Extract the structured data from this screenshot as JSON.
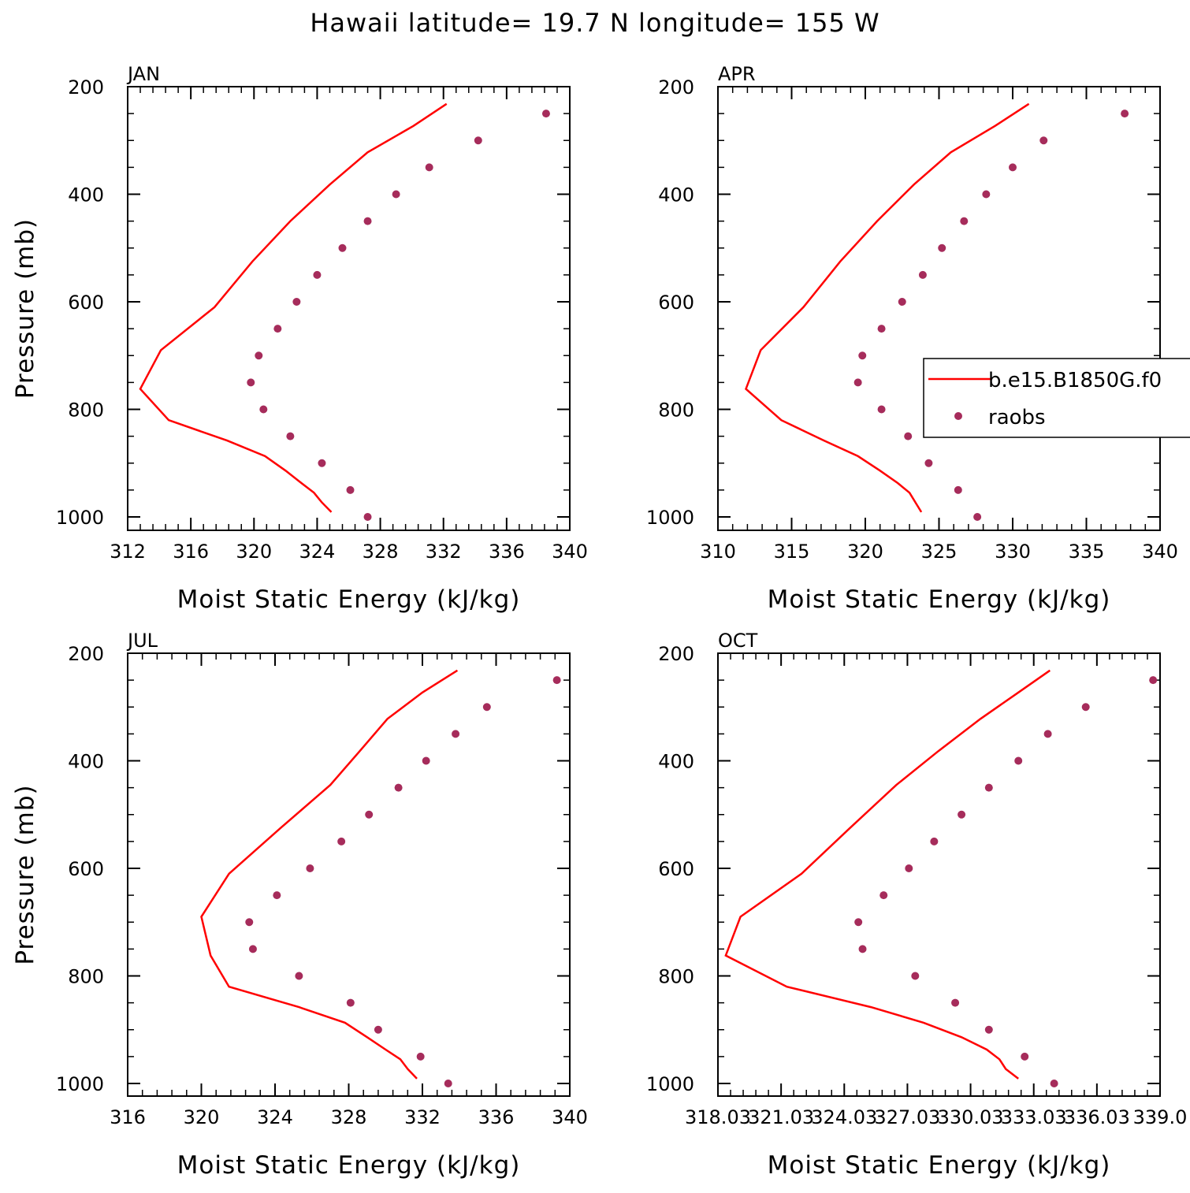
{
  "title": "Hawaii  latitude= 19.7 N longitude= 155 W",
  "legend": {
    "placement": "right-middle",
    "entries": [
      "b.e15.B1850G.f0",
      "raobs"
    ]
  },
  "colors": {
    "model_line": "#ff0000",
    "raobs_marker": "#a62c5b"
  },
  "chart_data": [
    {
      "type": "line",
      "panel_label": "JAN",
      "xlabel": "Moist Static Energy (kJ/kg)",
      "ylabel": "Pressure (mb)",
      "xlim": [
        312,
        340
      ],
      "ylim": [
        200,
        1020
      ],
      "x_ticks": [
        312,
        316,
        320,
        324,
        328,
        332,
        336,
        340
      ],
      "x_tick_labels": [
        "312",
        "316",
        "320",
        "324",
        "328",
        "332",
        "336",
        "340"
      ],
      "y_ticks": [
        200,
        400,
        600,
        800,
        1000
      ],
      "y_tick_labels": [
        "200",
        "400",
        "600",
        "800",
        "1000"
      ],
      "series": [
        {
          "name": "b.e15.B1850G.f0",
          "kind": "line",
          "x": [
            332.2,
            330.1,
            327.2,
            324.8,
            322.3,
            319.9,
            317.5,
            314.1,
            312.8,
            314.6,
            318.3,
            320.7,
            322.0,
            323.0,
            323.8,
            324.3,
            324.9
          ],
          "y": [
            232,
            273,
            322,
            382,
            450,
            525,
            610,
            690,
            762,
            820,
            858,
            887,
            914,
            937,
            955,
            973,
            991
          ]
        },
        {
          "name": "raobs",
          "kind": "scatter",
          "x": [
            338.5,
            334.2,
            331.1,
            329.0,
            327.2,
            325.6,
            324.0,
            322.7,
            321.5,
            320.3,
            319.8,
            320.6,
            322.3,
            324.3,
            326.1,
            327.2
          ],
          "y": [
            250,
            300,
            350,
            400,
            450,
            500,
            550,
            600,
            650,
            700,
            750,
            800,
            850,
            900,
            950,
            1000
          ]
        }
      ]
    },
    {
      "type": "line",
      "panel_label": "APR",
      "xlabel": "Moist Static Energy (kJ/kg)",
      "ylabel": "",
      "xlim": [
        310,
        340
      ],
      "ylim": [
        200,
        1020
      ],
      "x_ticks": [
        310,
        315,
        320,
        325,
        330,
        335,
        340
      ],
      "x_tick_labels": [
        "310",
        "315",
        "320",
        "325",
        "330",
        "335",
        "340"
      ],
      "y_ticks": [
        200,
        400,
        600,
        800,
        1000
      ],
      "y_tick_labels": [
        "200",
        "400",
        "600",
        "800",
        "1000"
      ],
      "series": [
        {
          "name": "b.e15.B1850G.f0",
          "kind": "line",
          "x": [
            331.1,
            328.8,
            325.8,
            323.3,
            320.8,
            318.3,
            315.8,
            312.9,
            311.9,
            314.3,
            317.2,
            319.5,
            321.0,
            322.2,
            323.0,
            323.4,
            323.8
          ],
          "y": [
            232,
            273,
            322,
            382,
            450,
            525,
            610,
            690,
            762,
            820,
            858,
            887,
            914,
            937,
            955,
            973,
            991
          ]
        },
        {
          "name": "raobs",
          "kind": "scatter",
          "x": [
            337.6,
            332.1,
            330.0,
            328.2,
            326.7,
            325.2,
            323.9,
            322.5,
            321.1,
            319.8,
            319.5,
            321.1,
            322.9,
            324.3,
            326.3,
            327.6
          ],
          "y": [
            250,
            300,
            350,
            400,
            450,
            500,
            550,
            600,
            650,
            700,
            750,
            800,
            850,
            900,
            950,
            1000
          ]
        }
      ]
    },
    {
      "type": "line",
      "panel_label": "JUL",
      "xlabel": "Moist Static Energy (kJ/kg)",
      "ylabel": "Pressure (mb)",
      "xlim": [
        316,
        340
      ],
      "ylim": [
        200,
        1020
      ],
      "x_ticks": [
        316,
        320,
        324,
        328,
        332,
        336,
        340
      ],
      "x_tick_labels": [
        "316",
        "320",
        "324",
        "328",
        "332",
        "336",
        "340"
      ],
      "y_ticks": [
        200,
        400,
        600,
        800,
        1000
      ],
      "y_tick_labels": [
        "200",
        "400",
        "600",
        "800",
        "1000"
      ],
      "series": [
        {
          "name": "b.e15.B1850G.f0",
          "kind": "line",
          "x": [
            333.9,
            332.0,
            330.1,
            328.6,
            327.0,
            324.3,
            321.5,
            320.0,
            320.5,
            321.5,
            325.3,
            327.8,
            329.0,
            330.0,
            330.8,
            331.2,
            331.7
          ],
          "y": [
            232,
            273,
            322,
            382,
            445,
            525,
            610,
            690,
            762,
            820,
            858,
            887,
            914,
            937,
            955,
            973,
            991
          ]
        },
        {
          "name": "raobs",
          "kind": "scatter",
          "x": [
            339.3,
            335.5,
            333.8,
            332.2,
            330.7,
            329.1,
            327.6,
            325.9,
            324.1,
            322.6,
            322.8,
            325.3,
            328.1,
            329.6,
            331.9,
            333.4
          ],
          "y": [
            250,
            300,
            350,
            400,
            450,
            500,
            550,
            600,
            650,
            700,
            750,
            800,
            850,
            900,
            950,
            1000
          ]
        }
      ]
    },
    {
      "type": "line",
      "panel_label": "OCT",
      "xlabel": "Moist Static Energy (kJ/kg)",
      "ylabel": "",
      "xlim": [
        318.03,
        339.03
      ],
      "ylim": [
        200,
        1020
      ],
      "x_ticks": [
        318.03,
        321.03,
        324.03,
        327.03,
        330.03,
        333.03,
        336.03,
        339.03
      ],
      "x_tick_labels": [
        "318.03",
        "321.03",
        "324.03",
        "327.03",
        "330.03",
        "333.03",
        "336.03",
        "339.0"
      ],
      "y_ticks": [
        200,
        400,
        600,
        800,
        1000
      ],
      "y_tick_labels": [
        "200",
        "400",
        "600",
        "800",
        "1000"
      ],
      "series": [
        {
          "name": "b.e15.B1850G.f0",
          "kind": "line",
          "x": [
            333.8,
            332.3,
            330.5,
            328.5,
            326.5,
            324.3,
            322.0,
            319.1,
            318.4,
            321.3,
            325.3,
            327.8,
            329.6,
            330.8,
            331.4,
            331.7,
            332.3
          ],
          "y": [
            232,
            273,
            322,
            382,
            445,
            525,
            610,
            690,
            762,
            820,
            858,
            887,
            914,
            937,
            955,
            973,
            991
          ]
        },
        {
          "name": "raobs",
          "kind": "scatter",
          "x": [
            338.7,
            335.5,
            333.7,
            332.3,
            330.9,
            329.6,
            328.3,
            327.1,
            325.9,
            324.7,
            324.9,
            327.4,
            329.3,
            330.9,
            332.6,
            334.0
          ],
          "y": [
            250,
            300,
            350,
            400,
            450,
            500,
            550,
            600,
            650,
            700,
            750,
            800,
            850,
            900,
            950,
            1000
          ]
        }
      ]
    }
  ]
}
